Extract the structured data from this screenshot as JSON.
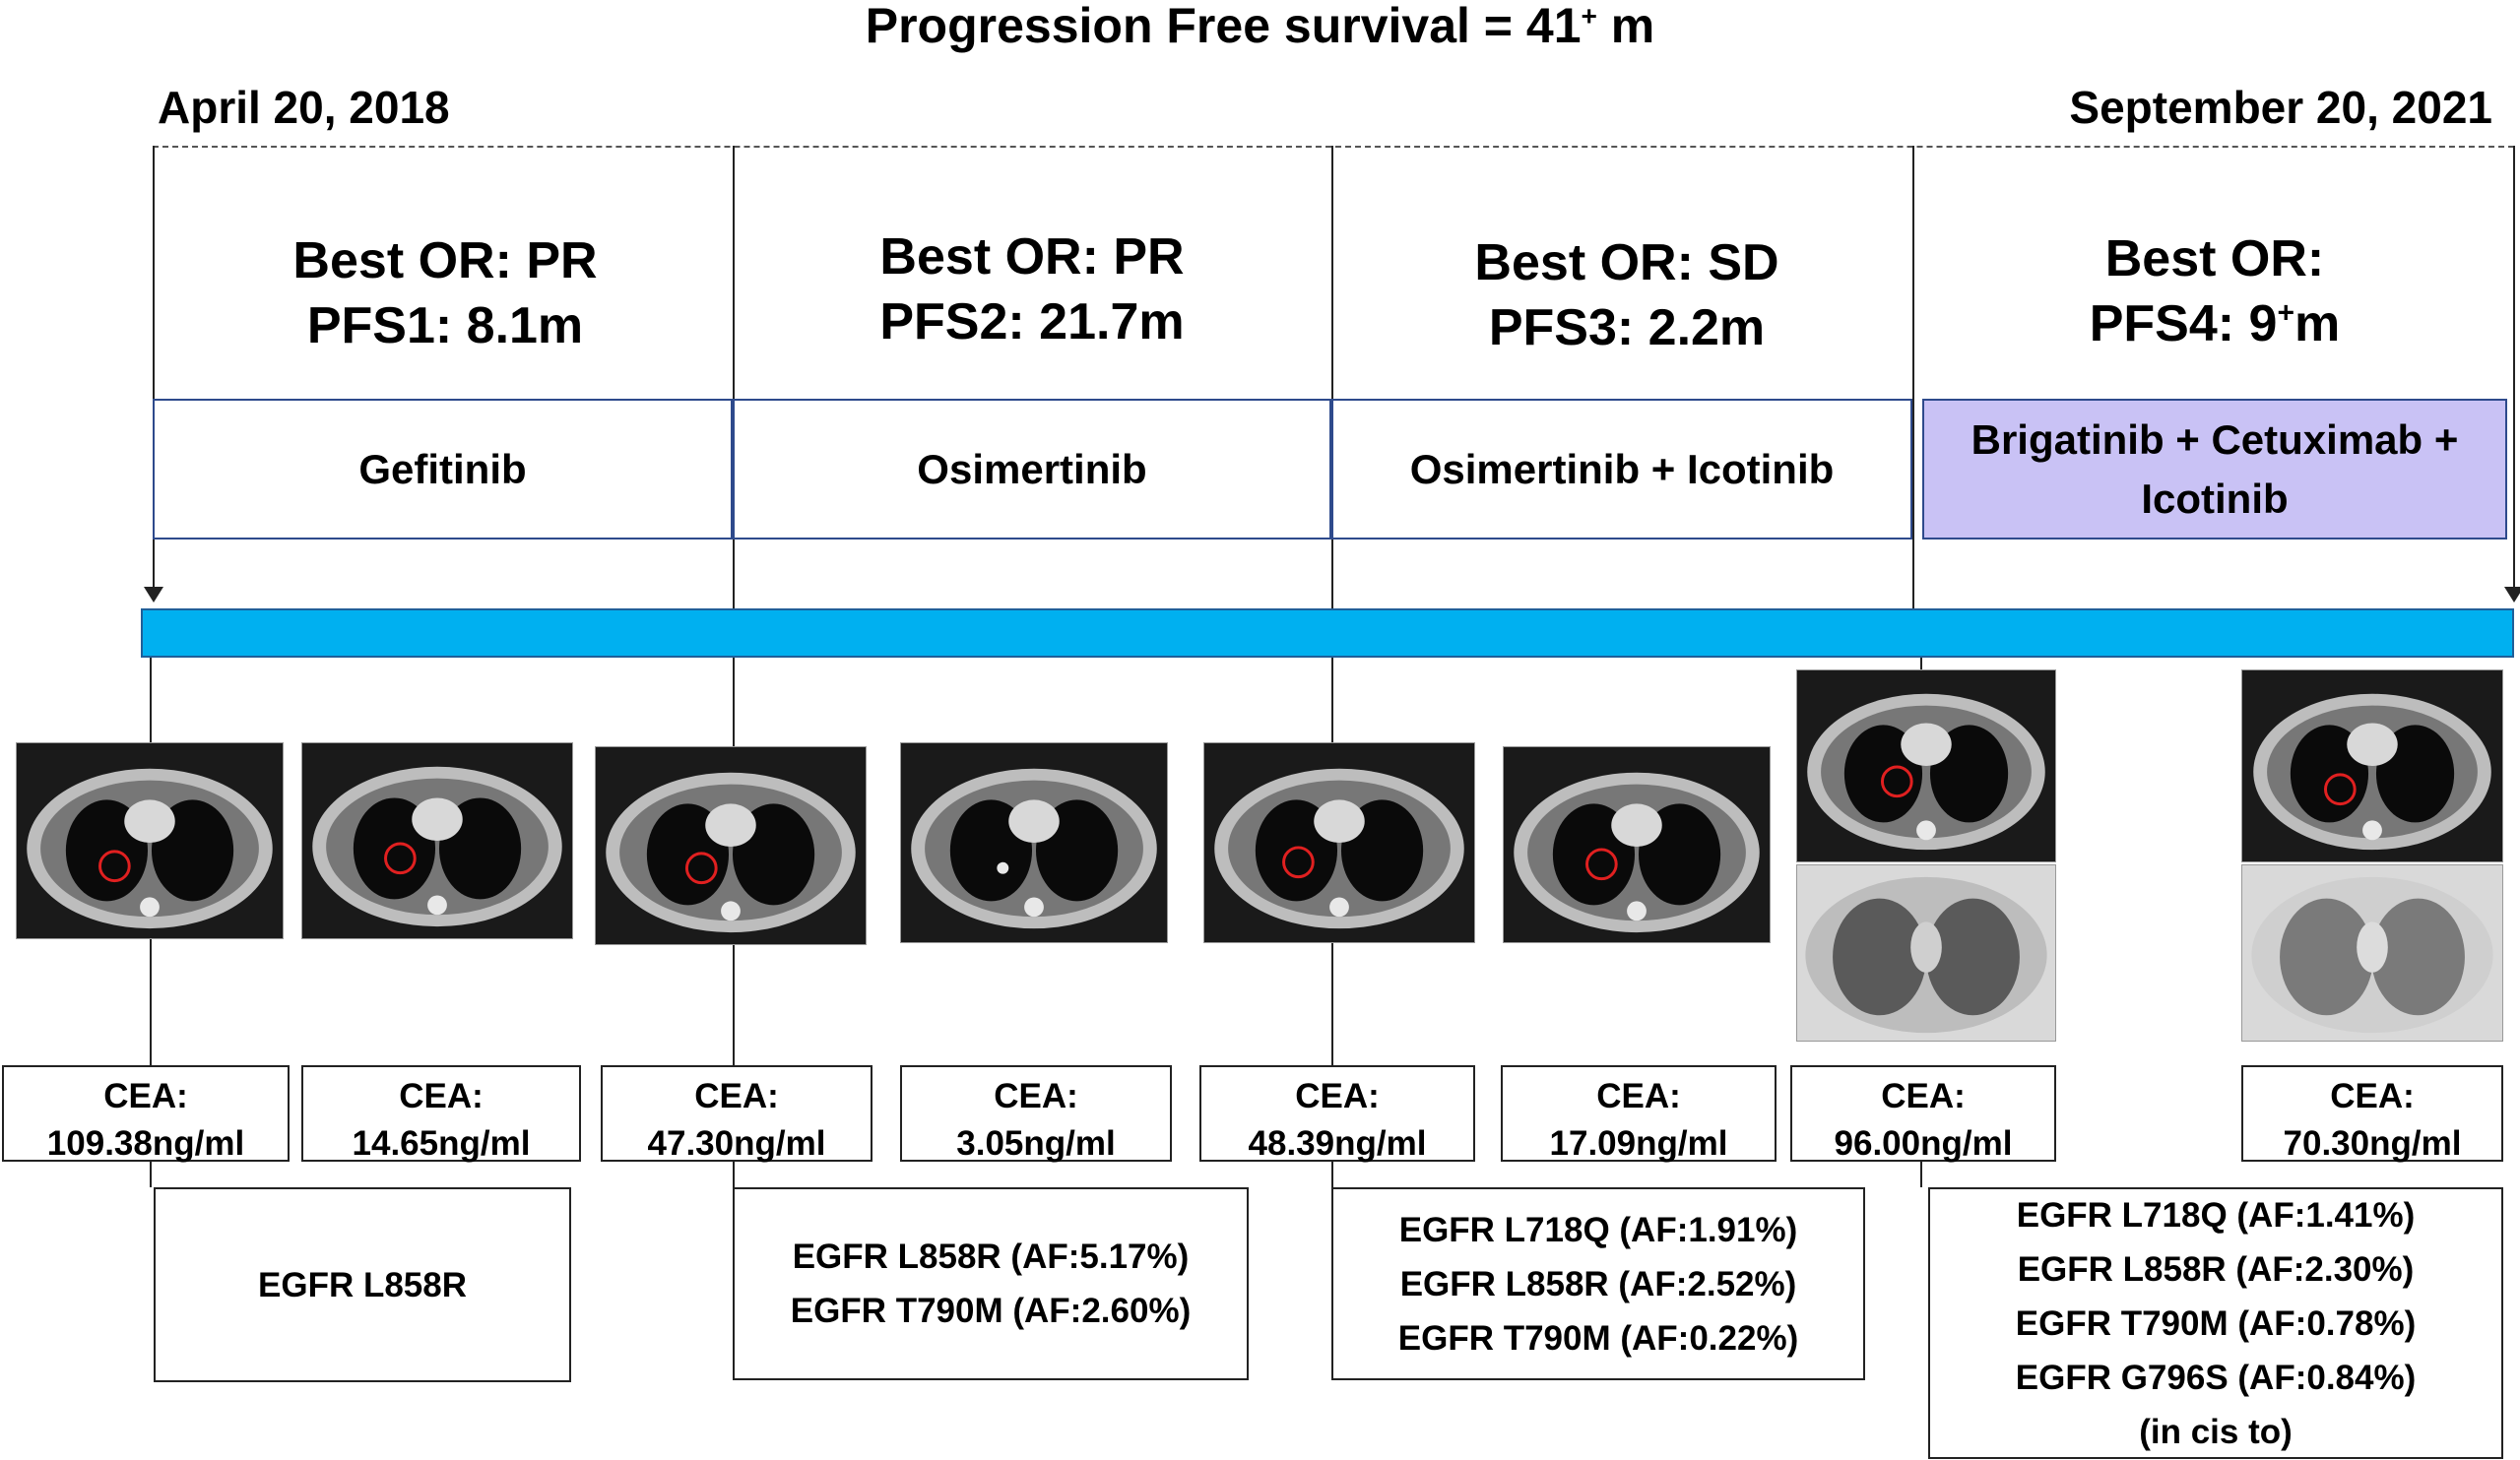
{
  "title": {
    "text": "Progression Free survival = 41",
    "sup": "+",
    "suffix": " m"
  },
  "dates": {
    "start": "April 20, 2018",
    "end": "September 20, 2021"
  },
  "phases": [
    {
      "best_or": "Best OR: PR",
      "pfs": "PFS1: 8.1m",
      "pfs_sup": "",
      "drug": "Gefitinib"
    },
    {
      "best_or": "Best OR: PR",
      "pfs": "PFS2: 21.7m",
      "pfs_sup": "",
      "drug": "Osimertinib"
    },
    {
      "best_or": "Best OR: SD",
      "pfs": "PFS3: 2.2m",
      "pfs_sup": "",
      "drug": "Osimertinib + Icotinib"
    },
    {
      "best_or": "Best OR:",
      "pfs": "PFS4: 9",
      "pfs_sup": "+",
      "pfs_suffix": "m",
      "drug_line1": "Brigatinib + Cetuximab +",
      "drug_line2": "Icotinib"
    }
  ],
  "cea": [
    {
      "label": "CEA:",
      "value": "109.38ng/ml"
    },
    {
      "label": "CEA:",
      "value": "14.65ng/ml"
    },
    {
      "label": "CEA:",
      "value": "47.30ng/ml"
    },
    {
      "label": "CEA:",
      "value": "3.05ng/ml"
    },
    {
      "label": "CEA:",
      "value": "48.39ng/ml"
    },
    {
      "label": "CEA:",
      "value": "17.09ng/ml"
    },
    {
      "label": "CEA:",
      "value": "96.00ng/ml"
    },
    {
      "label": "CEA:",
      "value": "70.30ng/ml"
    }
  ],
  "mutations": [
    {
      "lines": [
        "EGFR L858R"
      ]
    },
    {
      "lines": [
        "EGFR L858R (AF:5.17%)",
        "EGFR T790M (AF:2.60%)"
      ]
    },
    {
      "lines": [
        "EGFR L718Q (AF:1.91%)",
        "EGFR L858R (AF:2.52%)",
        "EGFR T790M (AF:0.22%)"
      ]
    },
    {
      "lines": [
        "EGFR L718Q (AF:1.41%)",
        "EGFR L858R (AF:2.30%)",
        "EGFR T790M (AF:0.78%)",
        "EGFR G796S (AF:0.84%)",
        "(in cis to)"
      ]
    }
  ],
  "colors": {
    "timeline_bar": "#00b0f0",
    "highlight_box": "#c9c2f5",
    "lesion_marker": "#e02020"
  }
}
